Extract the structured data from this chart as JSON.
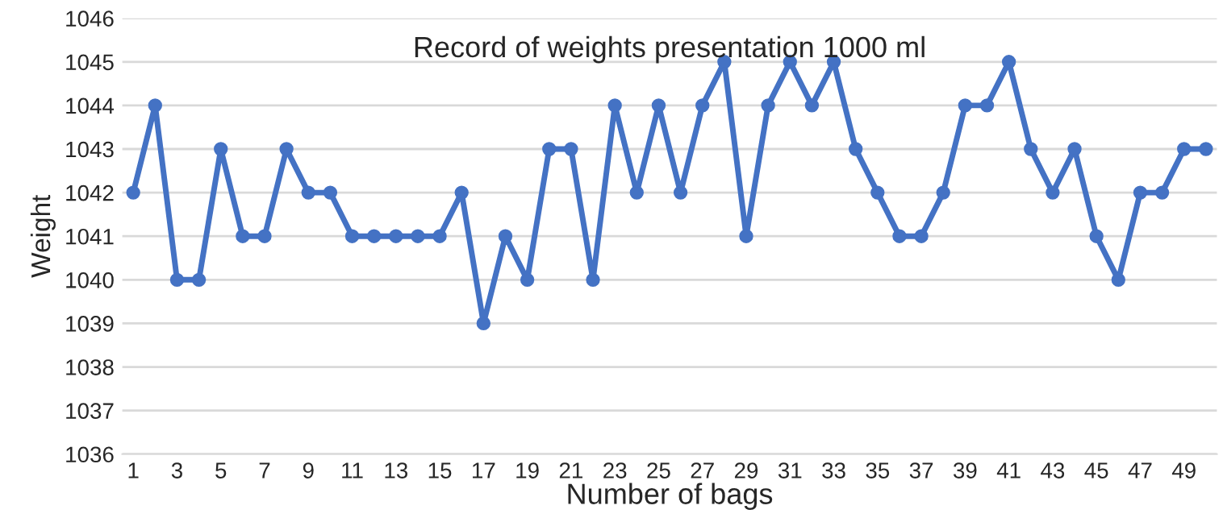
{
  "chart_data": {
    "type": "line",
    "title": "Record of weights presentation 1000 ml",
    "xlabel": "Number of bags",
    "ylabel": "Weight",
    "categories": [
      "1",
      null,
      "3",
      null,
      "5",
      null,
      "7",
      null,
      "9",
      null,
      "11",
      null,
      "13",
      null,
      "15",
      null,
      "17",
      null,
      "19",
      null,
      "21",
      null,
      "23",
      null,
      "25",
      null,
      "27",
      null,
      "29",
      null,
      "31",
      null,
      "33",
      null,
      "35",
      null,
      "37",
      null,
      "39",
      null,
      "41",
      null,
      "43",
      null,
      "45",
      null,
      "47",
      null,
      "49",
      null
    ],
    "series": [
      {
        "color": "#4472c4",
        "values": [
          1042,
          1044,
          1040,
          1040,
          1043,
          1041,
          1041,
          1043,
          1042,
          1042,
          1041,
          1041,
          1041,
          1041,
          1041,
          1042,
          1039,
          1041,
          1040,
          1043,
          1043,
          1040,
          1044,
          1042,
          1044,
          1042,
          1044,
          1045,
          1041,
          1044,
          1045,
          1044,
          1045,
          1043,
          1042,
          1041,
          1041,
          1042,
          1044,
          1044,
          1045,
          1043,
          1042,
          1043,
          1041,
          1040,
          1042,
          1042,
          1043,
          1043
        ]
      }
    ],
    "ylim": [
      1036,
      1046
    ],
    "yticks": [
      1036,
      1037,
      1038,
      1039,
      1040,
      1041,
      1042,
      1043,
      1044,
      1045,
      1046
    ],
    "grid": "y",
    "legend": false,
    "marker": "circle",
    "line_style": "solid"
  }
}
